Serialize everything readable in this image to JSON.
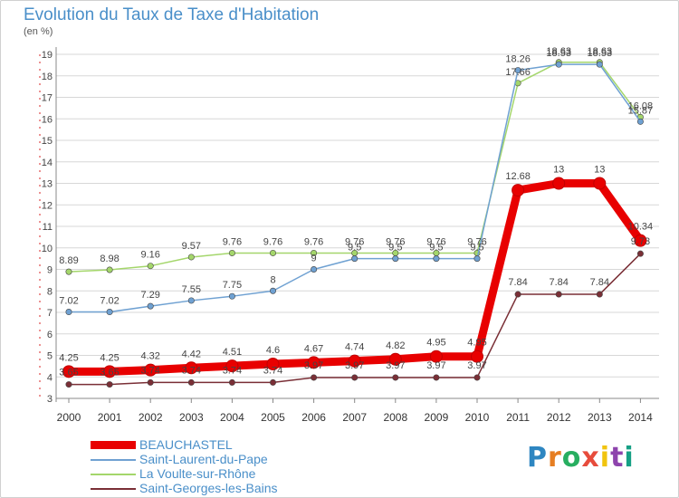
{
  "title": "Evolution du Taux de Taxe d'Habitation",
  "unit_label": "(en %)",
  "logo_text": "Proxiti",
  "colors": {
    "title": "#4a8fc9",
    "BEAUCHASTEL": "#e80000",
    "Saint-Laurent-du-Pape": "#6fa1d2",
    "La Voulte-sur-Rhône": "#a4d66b",
    "Saint-Georges-les-Bains": "#7a2f36",
    "grid": "#d7d7d7"
  },
  "chart_data": {
    "type": "line",
    "x": [
      "2000",
      "2001",
      "2002",
      "2003",
      "2004",
      "2005",
      "2006",
      "2007",
      "2008",
      "2009",
      "2010",
      "2011",
      "2012",
      "2013",
      "2014"
    ],
    "ylim": [
      3,
      19
    ],
    "yticks": [
      3,
      4,
      5,
      6,
      7,
      8,
      9,
      10,
      11,
      12,
      13,
      14,
      15,
      16,
      17,
      18,
      19
    ],
    "grid": true,
    "legend_position": "bottom-left",
    "series": [
      {
        "name": "Saint-Georges-les-Bains",
        "values": [
          3.65,
          3.65,
          3.74,
          3.74,
          3.74,
          3.74,
          3.97,
          3.97,
          3.97,
          3.97,
          3.97,
          7.84,
          7.84,
          7.84,
          9.73
        ],
        "labels": [
          "3.65",
          "3.65",
          "3.74",
          "3.74",
          "3.74",
          "3.74",
          "3.97",
          "3.97",
          "3.97",
          "3.97",
          "3.97",
          "7.84",
          "7.84",
          "7.84",
          "9.73"
        ]
      },
      {
        "name": "La Voulte-sur-Rhône",
        "values": [
          8.89,
          8.98,
          9.16,
          9.57,
          9.76,
          9.76,
          9.76,
          9.76,
          9.76,
          9.76,
          9.76,
          17.66,
          18.63,
          18.63,
          16.08
        ],
        "labels": [
          "8.89",
          "8.98",
          "9.16",
          "9.57",
          "9.76",
          "9.76",
          "9.76",
          "9.76",
          "9.76",
          "9.76",
          "9.76",
          "17.66",
          "18.63",
          "18.63",
          "16.08"
        ]
      },
      {
        "name": "Saint-Laurent-du-Pape",
        "values": [
          7.02,
          7.02,
          7.29,
          7.55,
          7.75,
          8,
          9,
          9.5,
          9.5,
          9.5,
          9.5,
          18.26,
          18.53,
          18.53,
          15.87
        ],
        "labels": [
          "7.02",
          "7.02",
          "7.29",
          "7.55",
          "7.75",
          "8",
          "9",
          "9.5",
          "9.5",
          "9.5",
          "9.5",
          "18.26",
          "18.53",
          "18.53",
          "15.87"
        ]
      },
      {
        "name": "BEAUCHASTEL",
        "values": [
          4.25,
          4.25,
          4.32,
          4.42,
          4.51,
          4.6,
          4.67,
          4.74,
          4.82,
          4.95,
          4.95,
          12.68,
          13,
          13,
          10.34
        ],
        "labels": [
          "4.25",
          "4.25",
          "4.32",
          "4.42",
          "4.51",
          "4.6",
          "4.67",
          "4.74",
          "4.82",
          "4.95",
          "4.95",
          "12.68",
          "13",
          "13",
          "10.34"
        ]
      }
    ]
  },
  "legend": [
    {
      "label": "BEAUCHASTEL",
      "series": "BEAUCHASTEL"
    },
    {
      "label": "Saint-Laurent-du-Pape",
      "series": "Saint-Laurent-du-Pape"
    },
    {
      "label": "La Voulte-sur-Rhône",
      "series": "La Voulte-sur-Rhône"
    },
    {
      "label": "Saint-Georges-les-Bains",
      "series": "Saint-Georges-les-Bains"
    }
  ]
}
